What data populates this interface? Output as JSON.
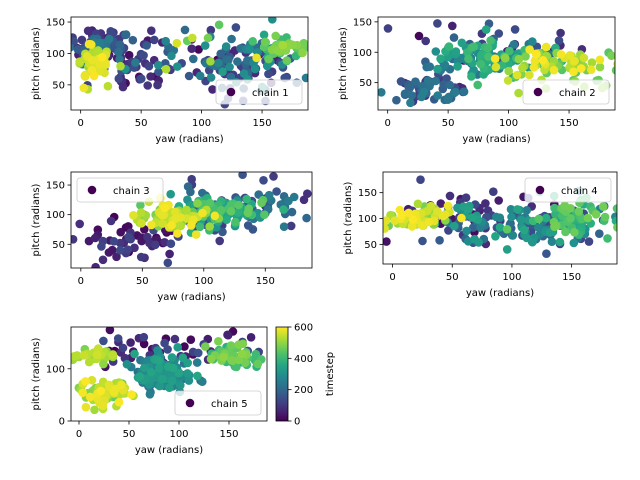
{
  "colorbar": {
    "label": "timestep",
    "min": 0,
    "max": 600,
    "ticks": [
      0,
      200,
      400,
      600
    ],
    "colormap": "viridis"
  },
  "chart_data": [
    {
      "type": "scatter",
      "xlabel": "yaw (radians)",
      "ylabel": "pitch (radians)",
      "legend": "chain 1",
      "legend_loc": "lower-right",
      "xlim": [
        -8,
        188
      ],
      "ylim": [
        10,
        158
      ],
      "xticks": [
        0,
        50,
        100,
        150
      ],
      "yticks": [
        50,
        100,
        150
      ],
      "clusters": [
        {
          "cx": 15,
          "cy": 112,
          "sx": 15,
          "sy": 12,
          "n": 90,
          "t": [
            40,
            260
          ]
        },
        {
          "cx": 40,
          "cy": 80,
          "sx": 22,
          "sy": 22,
          "n": 45,
          "t": [
            0,
            160
          ]
        },
        {
          "cx": 130,
          "cy": 85,
          "sx": 28,
          "sy": 25,
          "n": 110,
          "t": [
            60,
            320
          ]
        },
        {
          "cx": 165,
          "cy": 105,
          "sx": 10,
          "sy": 12,
          "n": 40,
          "t": [
            380,
            520
          ]
        },
        {
          "cx": 10,
          "cy": 85,
          "sx": 7,
          "sy": 14,
          "n": 55,
          "t": [
            500,
            600
          ]
        },
        {
          "cx": 100,
          "cy": 100,
          "sx": 40,
          "sy": 25,
          "n": 30,
          "t": [
            0,
            600
          ]
        }
      ]
    },
    {
      "type": "scatter",
      "xlabel": "yaw (radians)",
      "ylabel": "pitch (radians)",
      "legend": "chain 2",
      "legend_loc": "lower-right",
      "xlim": [
        -8,
        188
      ],
      "ylim": [
        5,
        158
      ],
      "xticks": [
        0,
        50,
        100,
        150
      ],
      "yticks": [
        50,
        100,
        150
      ],
      "clusters": [
        {
          "cx": 30,
          "cy": 40,
          "sx": 20,
          "sy": 10,
          "n": 60,
          "t": [
            60,
            260
          ]
        },
        {
          "cx": 75,
          "cy": 90,
          "sx": 25,
          "sy": 15,
          "n": 120,
          "t": [
            200,
            420
          ]
        },
        {
          "cx": 140,
          "cy": 80,
          "sx": 28,
          "sy": 14,
          "n": 90,
          "t": [
            440,
            600
          ]
        },
        {
          "cx": 90,
          "cy": 115,
          "sx": 40,
          "sy": 20,
          "n": 30,
          "t": [
            0,
            200
          ]
        }
      ]
    },
    {
      "type": "scatter",
      "xlabel": "yaw (radians)",
      "ylabel": "pitch (radians)",
      "legend": "chain 3",
      "legend_loc": "upper-left",
      "xlim": [
        -8,
        188
      ],
      "ylim": [
        10,
        172
      ],
      "xticks": [
        0,
        50,
        100,
        150
      ],
      "yticks": [
        50,
        100,
        150
      ],
      "clusters": [
        {
          "cx": 45,
          "cy": 55,
          "sx": 30,
          "sy": 18,
          "n": 60,
          "t": [
            0,
            140
          ]
        },
        {
          "cx": 130,
          "cy": 115,
          "sx": 25,
          "sy": 20,
          "n": 80,
          "t": [
            80,
            260
          ]
        },
        {
          "cx": 115,
          "cy": 105,
          "sx": 20,
          "sy": 12,
          "n": 100,
          "t": [
            300,
            460
          ]
        },
        {
          "cx": 75,
          "cy": 95,
          "sx": 18,
          "sy": 12,
          "n": 70,
          "t": [
            480,
            600
          ]
        }
      ]
    },
    {
      "type": "scatter",
      "xlabel": "yaw (radians)",
      "ylabel": "pitch (radians)",
      "legend": "chain 4",
      "legend_loc": "upper-right",
      "xlim": [
        -8,
        188
      ],
      "ylim": [
        12,
        190
      ],
      "xticks": [
        0,
        50,
        100,
        150
      ],
      "yticks": [
        50,
        100,
        150
      ],
      "clusters": [
        {
          "cx": 70,
          "cy": 115,
          "sx": 40,
          "sy": 25,
          "n": 50,
          "t": [
            0,
            140
          ]
        },
        {
          "cx": 110,
          "cy": 85,
          "sx": 35,
          "sy": 20,
          "n": 130,
          "t": [
            120,
            360
          ]
        },
        {
          "cx": 150,
          "cy": 100,
          "sx": 18,
          "sy": 18,
          "n": 60,
          "t": [
            360,
            480
          ]
        },
        {
          "cx": 20,
          "cy": 100,
          "sx": 12,
          "sy": 14,
          "n": 70,
          "t": [
            460,
            600
          ]
        }
      ]
    },
    {
      "type": "scatter",
      "xlabel": "yaw (radians)",
      "ylabel": "pitch (radians)",
      "legend": "chain 5",
      "legend_loc": "lower-right",
      "xlim": [
        -8,
        188
      ],
      "ylim": [
        0,
        180
      ],
      "xticks": [
        0,
        50,
        100,
        150
      ],
      "yticks": [
        0,
        100
      ],
      "clusters": [
        {
          "cx": 90,
          "cy": 140,
          "sx": 40,
          "sy": 18,
          "n": 50,
          "t": [
            0,
            160
          ]
        },
        {
          "cx": 85,
          "cy": 90,
          "sx": 14,
          "sy": 18,
          "n": 150,
          "t": [
            180,
            360
          ]
        },
        {
          "cx": 155,
          "cy": 125,
          "sx": 15,
          "sy": 15,
          "n": 60,
          "t": [
            380,
            500
          ]
        },
        {
          "cx": 25,
          "cy": 55,
          "sx": 12,
          "sy": 12,
          "n": 70,
          "t": [
            460,
            600
          ]
        },
        {
          "cx": 15,
          "cy": 125,
          "sx": 10,
          "sy": 8,
          "n": 25,
          "t": [
            480,
            560
          ]
        }
      ]
    }
  ]
}
